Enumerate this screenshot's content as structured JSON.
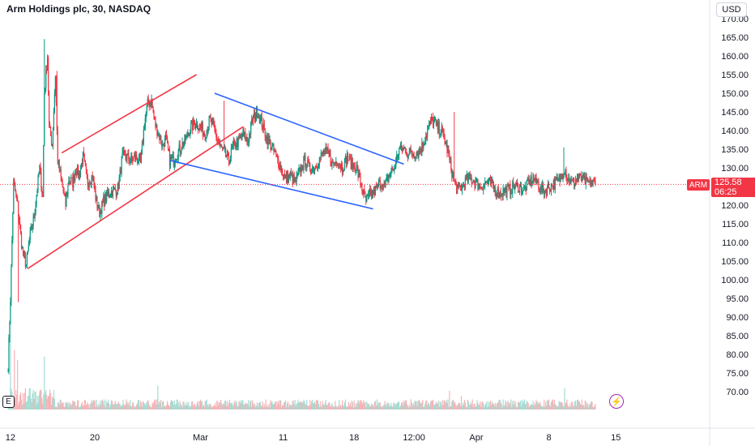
{
  "header": {
    "title": "Arm Holdings plc, 30, NASDAQ",
    "currency": "USD"
  },
  "price_tag": {
    "symbol": "ARM",
    "price": "125.58",
    "countdown": "06:25"
  },
  "badges": {
    "earnings": "E",
    "flash": "⚡"
  },
  "colors": {
    "up": "#089981",
    "down": "#f23645",
    "up_volume": "#a5dcd3",
    "down_volume": "#f7b3b7",
    "channel_up": "#f23645",
    "channel_down": "#2962ff",
    "axis_text": "#131722",
    "last_price_line": "#f23645"
  },
  "chart_data": {
    "type": "candlestick",
    "title": "Arm Holdings plc, 30, NASDAQ",
    "currency": "USD",
    "ylim": [
      68,
      172
    ],
    "y_ticks": [
      70,
      75,
      80,
      85,
      90,
      95,
      100,
      105,
      110,
      115,
      120,
      125,
      130,
      135,
      140,
      145,
      150,
      155,
      160,
      165,
      170
    ],
    "y_tick_labels": [
      "70.00",
      "75.00",
      "80.00",
      "85.00",
      "90.00",
      "95.00",
      "100.00",
      "105.00",
      "110.00",
      "115.00",
      "120.00",
      "125.00",
      "130.00",
      "135.00",
      "140.00",
      "145.00",
      "150.00",
      "155.00",
      "160.00",
      "165.00",
      "170.00"
    ],
    "x_ticks": [
      {
        "label": "12",
        "bar": 3
      },
      {
        "label": "20",
        "bar": 110
      },
      {
        "label": "Mar",
        "bar": 244
      },
      {
        "label": "11",
        "bar": 349
      },
      {
        "label": "18",
        "bar": 439
      },
      {
        "label": "12:00",
        "bar": 515
      },
      {
        "label": "Apr",
        "bar": 594
      },
      {
        "label": "8",
        "bar": 686
      },
      {
        "label": "15",
        "bar": 771
      }
    ],
    "total_bar_slots": 890,
    "last_price": 125.58,
    "price_keypoints": [
      [
        0,
        77
      ],
      [
        3,
        95
      ],
      [
        7,
        126
      ],
      [
        12,
        120
      ],
      [
        18,
        108
      ],
      [
        23,
        104
      ],
      [
        28,
        112
      ],
      [
        33,
        117
      ],
      [
        40,
        130
      ],
      [
        44,
        122
      ],
      [
        46,
        150
      ],
      [
        50,
        160
      ],
      [
        52,
        141
      ],
      [
        56,
        136
      ],
      [
        60,
        155
      ],
      [
        63,
        132
      ],
      [
        68,
        126
      ],
      [
        73,
        120
      ],
      [
        77,
        127
      ],
      [
        82,
        126
      ],
      [
        86,
        130
      ],
      [
        90,
        128
      ],
      [
        95,
        133
      ],
      [
        101,
        126
      ],
      [
        107,
        128
      ],
      [
        112,
        121
      ],
      [
        116,
        118
      ],
      [
        121,
        121
      ],
      [
        127,
        123
      ],
      [
        133,
        124
      ],
      [
        139,
        124
      ],
      [
        145,
        133
      ],
      [
        151,
        133
      ],
      [
        156,
        132
      ],
      [
        162,
        133
      ],
      [
        168,
        131
      ],
      [
        173,
        142
      ],
      [
        177,
        147
      ],
      [
        182,
        148
      ],
      [
        186,
        142
      ],
      [
        191,
        139
      ],
      [
        196,
        136
      ],
      [
        200,
        138
      ],
      [
        205,
        132
      ],
      [
        210,
        132
      ],
      [
        215,
        134
      ],
      [
        220,
        136
      ],
      [
        226,
        138
      ],
      [
        232,
        141
      ],
      [
        238,
        142
      ],
      [
        244,
        141
      ],
      [
        250,
        139
      ],
      [
        256,
        143
      ],
      [
        262,
        140
      ],
      [
        268,
        136
      ],
      [
        274,
        134
      ],
      [
        280,
        132
      ],
      [
        286,
        136
      ],
      [
        292,
        137
      ],
      [
        298,
        139
      ],
      [
        304,
        137
      ],
      [
        310,
        143
      ],
      [
        316,
        145
      ],
      [
        322,
        142
      ],
      [
        328,
        138
      ],
      [
        334,
        136
      ],
      [
        340,
        133
      ],
      [
        346,
        130
      ],
      [
        352,
        127
      ],
      [
        358,
        128
      ],
      [
        364,
        126
      ],
      [
        370,
        129
      ],
      [
        376,
        132
      ],
      [
        382,
        130
      ],
      [
        388,
        130
      ],
      [
        394,
        132
      ],
      [
        400,
        134
      ],
      [
        406,
        134
      ],
      [
        412,
        131
      ],
      [
        418,
        132
      ],
      [
        424,
        130
      ],
      [
        430,
        133
      ],
      [
        436,
        131
      ],
      [
        442,
        130
      ],
      [
        448,
        125
      ],
      [
        454,
        121
      ],
      [
        460,
        123
      ],
      [
        466,
        124
      ],
      [
        472,
        126
      ],
      [
        478,
        125
      ],
      [
        484,
        128
      ],
      [
        490,
        130
      ],
      [
        496,
        135
      ],
      [
        502,
        135
      ],
      [
        508,
        134
      ],
      [
        514,
        134
      ],
      [
        520,
        134
      ],
      [
        526,
        136
      ],
      [
        532,
        140
      ],
      [
        538,
        143
      ],
      [
        544,
        141
      ],
      [
        550,
        140
      ],
      [
        556,
        136
      ],
      [
        562,
        130
      ],
      [
        566,
        126
      ],
      [
        570,
        124
      ],
      [
        576,
        125
      ],
      [
        582,
        127
      ],
      [
        588,
        127
      ],
      [
        594,
        126
      ],
      [
        600,
        125
      ],
      [
        606,
        126
      ],
      [
        612,
        126
      ],
      [
        618,
        124
      ],
      [
        624,
        123
      ],
      [
        630,
        124
      ],
      [
        636,
        124
      ],
      [
        642,
        125
      ],
      [
        648,
        125
      ],
      [
        654,
        124
      ],
      [
        660,
        126
      ],
      [
        666,
        127
      ],
      [
        672,
        126
      ],
      [
        676,
        124
      ],
      [
        682,
        124
      ],
      [
        688,
        125
      ],
      [
        694,
        126
      ],
      [
        700,
        127
      ],
      [
        706,
        130
      ],
      [
        710,
        127
      ],
      [
        716,
        126
      ],
      [
        722,
        127
      ],
      [
        728,
        127
      ],
      [
        734,
        126
      ],
      [
        740,
        126
      ],
      [
        745,
        125.58
      ]
    ],
    "wick_spikes": [
      {
        "bar": 46,
        "high": 164.5
      },
      {
        "bar": 13,
        "low": 94
      },
      {
        "bar": 24,
        "low": 103
      },
      {
        "bar": 62,
        "high": 156
      },
      {
        "bar": 274,
        "high": 148
      },
      {
        "bar": 705,
        "high": 135.5
      },
      {
        "bar": 566,
        "high": 145
      }
    ],
    "volume": {
      "max": 100,
      "spikes": [
        [
          3,
          100
        ],
        [
          8,
          70
        ],
        [
          12,
          58
        ],
        [
          46,
          62
        ],
        [
          190,
          28
        ],
        [
          706,
          25
        ],
        [
          560,
          22
        ],
        [
          575,
          16
        ]
      ],
      "base_level": 8
    },
    "trendlines": [
      {
        "name": "rising-channel-upper",
        "color": "#f23645",
        "from": {
          "bar": 68,
          "price": 134
        },
        "to": {
          "bar": 239,
          "price": 155
        }
      },
      {
        "name": "rising-channel-lower",
        "color": "#f23645",
        "from": {
          "bar": 25,
          "price": 103
        },
        "to": {
          "bar": 298,
          "price": 141
        }
      },
      {
        "name": "falling-channel-upper",
        "color": "#2962ff",
        "from": {
          "bar": 262,
          "price": 150
        },
        "to": {
          "bar": 502,
          "price": 131
        }
      },
      {
        "name": "falling-channel-lower",
        "color": "#2962ff",
        "from": {
          "bar": 205,
          "price": 132
        },
        "to": {
          "bar": 463,
          "price": 119
        }
      }
    ]
  }
}
